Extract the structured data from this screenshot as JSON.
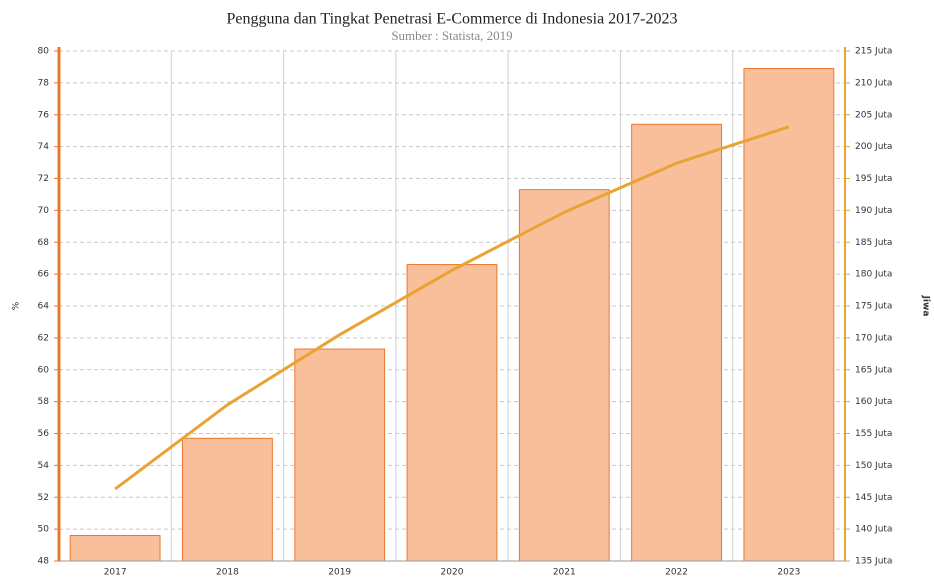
{
  "chart_data": {
    "type": "bar_line",
    "title": "Pengguna dan Tingkat Penetrasi E-Commerce di Indonesia 2017-2023",
    "subtitle": "Sumber : Statista, 2019",
    "ylabel": "%",
    "y2label": "Jiwa",
    "categories": [
      "2017",
      "2018",
      "2019",
      "2020",
      "2021",
      "2022",
      "2023"
    ],
    "series": [
      {
        "type": "bar",
        "color": "#f9bf9b",
        "edge_color": "#e8782e",
        "values": [
          49.6,
          55.7,
          61.3,
          66.6,
          71.3,
          75.4,
          78.9
        ]
      },
      {
        "type": "line",
        "color": "#e8a332",
        "axis": "y2",
        "values": [
          146.3,
          159.5,
          170.5,
          180.6,
          189.7,
          197.4,
          203.1
        ]
      }
    ],
    "ylim": [
      48,
      80
    ],
    "yticks": [
      48,
      50,
      52,
      54,
      56,
      58,
      60,
      62,
      64,
      66,
      68,
      70,
      72,
      74,
      76,
      78,
      80
    ],
    "y2lim": [
      135,
      215
    ],
    "y2ticks": [
      {
        "value": 135,
        "label": "135 Juta"
      },
      {
        "value": 140,
        "label": "140 Juta"
      },
      {
        "value": 145,
        "label": "145 Juta"
      },
      {
        "value": 150,
        "label": "150 Juta"
      },
      {
        "value": 155,
        "label": "155 Juta"
      },
      {
        "value": 160,
        "label": "160 Juta"
      },
      {
        "value": 165,
        "label": "165 Juta"
      },
      {
        "value": 170,
        "label": "170 Juta"
      },
      {
        "value": 175,
        "label": "175 Juta"
      },
      {
        "value": 180,
        "label": "180 Juta"
      },
      {
        "value": 185,
        "label": "185 Juta"
      },
      {
        "value": 190,
        "label": "190 Juta"
      },
      {
        "value": 195,
        "label": "195 Juta"
      },
      {
        "value": 200,
        "label": "200 Juta"
      },
      {
        "value": 205,
        "label": "205 Juta"
      },
      {
        "value": 210,
        "label": "210 Juta"
      },
      {
        "value": 215,
        "label": "215 Juta"
      }
    ],
    "grid": true
  }
}
